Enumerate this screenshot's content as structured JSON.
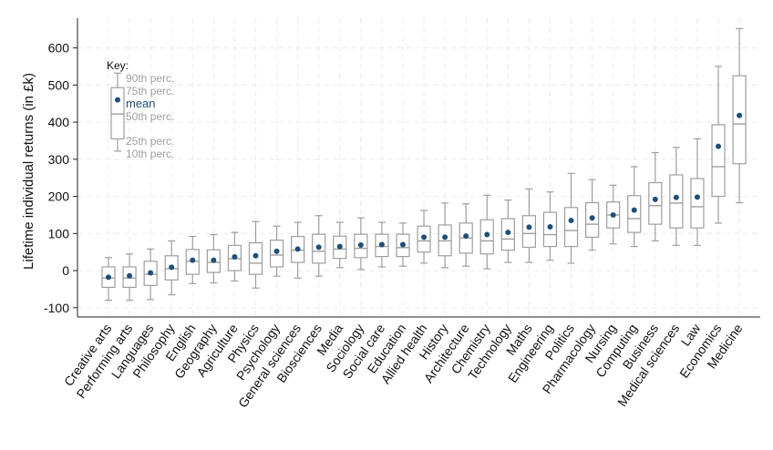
{
  "colors": {
    "box": "#9e9e9e",
    "mean": "#1f4e79",
    "grid": "#ececec",
    "axis": "#222222"
  },
  "chart_data": {
    "type": "boxplot",
    "ylabel": "Lifetime individual returns (in £k)",
    "ylim": [
      -125,
      680
    ],
    "yticks": [
      -100,
      0,
      100,
      200,
      300,
      400,
      500,
      600
    ],
    "grid": true,
    "key": {
      "title": "Key:",
      "labels": {
        "p90": "90th perc.",
        "p75": "75th perc.",
        "mean": "mean",
        "p50": "50th perc.",
        "p25": "25th perc.",
        "p10": "10th perc."
      },
      "example": {
        "p10": 322,
        "p25": 355,
        "p50": 422,
        "p75": 493,
        "p90": 532,
        "mean": 460
      }
    },
    "categories": [
      "Creative arts",
      "Performing arts",
      "Languages",
      "Philosophy",
      "English",
      "Geography",
      "Agriculture",
      "Physics",
      "Psychology",
      "General sciences",
      "Biosciences",
      "Media",
      "Sociology",
      "Social care",
      "Education",
      "Allied health",
      "History",
      "Architecture",
      "Chemistry",
      "Technology",
      "Maths",
      "Engineering",
      "Politics",
      "Pharmacology",
      "Nursing",
      "Computing",
      "Business",
      "Medical sciences",
      "Law",
      "Economics",
      "Medicine"
    ],
    "series": {
      "p10": [
        -80,
        -80,
        -78,
        -65,
        -35,
        -33,
        -28,
        -47,
        -15,
        -20,
        -15,
        8,
        3,
        10,
        12,
        20,
        8,
        12,
        5,
        22,
        22,
        28,
        20,
        55,
        72,
        65,
        80,
        68,
        68,
        128,
        183
      ],
      "p25": [
        -45,
        -45,
        -40,
        -25,
        -10,
        -5,
        0,
        -10,
        10,
        22,
        20,
        33,
        35,
        38,
        38,
        50,
        40,
        47,
        45,
        55,
        63,
        65,
        65,
        90,
        115,
        103,
        125,
        115,
        115,
        200,
        288
      ],
      "median": [
        -20,
        -20,
        -10,
        5,
        25,
        22,
        32,
        20,
        42,
        55,
        52,
        58,
        60,
        65,
        62,
        80,
        80,
        88,
        80,
        85,
        100,
        97,
        108,
        125,
        150,
        140,
        175,
        182,
        172,
        280,
        395
      ],
      "p75": [
        10,
        10,
        25,
        40,
        57,
        56,
        68,
        75,
        82,
        92,
        98,
        93,
        98,
        98,
        98,
        120,
        123,
        128,
        137,
        140,
        148,
        157,
        170,
        183,
        185,
        202,
        237,
        258,
        248,
        393,
        525
      ],
      "p90": [
        35,
        45,
        58,
        80,
        92,
        97,
        103,
        132,
        120,
        130,
        148,
        130,
        142,
        130,
        128,
        162,
        182,
        180,
        203,
        190,
        220,
        212,
        262,
        245,
        230,
        280,
        318,
        332,
        355,
        550,
        652
      ],
      "mean": [
        -18,
        -14,
        -6,
        9,
        28,
        28,
        37,
        40,
        52,
        58,
        63,
        65,
        69,
        70,
        70,
        90,
        90,
        93,
        97,
        103,
        117,
        118,
        135,
        142,
        150,
        163,
        192,
        197,
        198,
        335,
        418
      ]
    }
  }
}
